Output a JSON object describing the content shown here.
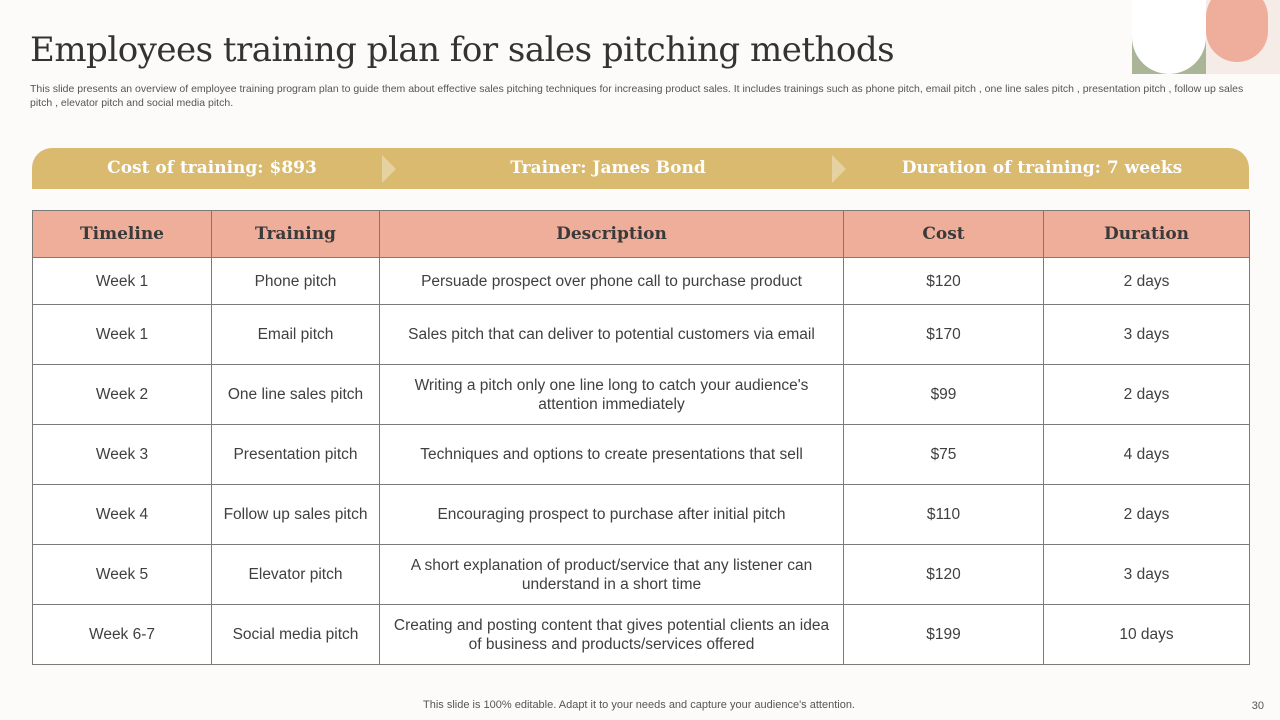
{
  "title": "Employees training plan for sales pitching methods",
  "subtitle": "This slide presents an overview of  employee training program plan to guide them about effective  sales pitching techniques for increasing product sales. It includes trainings such as phone pitch, email pitch , one line sales pitch , presentation pitch , follow up sales pitch , elevator pitch and social media pitch.",
  "banner": {
    "cost": "Cost of training: $893",
    "trainer": "Trainer: James Bond",
    "duration": "Duration of training: 7 weeks"
  },
  "table": {
    "headers": [
      "Timeline",
      "Training",
      "Description",
      "Cost",
      "Duration"
    ],
    "rows": [
      [
        "Week 1",
        "Phone pitch",
        "Persuade prospect over phone call to purchase product",
        "$120",
        "2 days"
      ],
      [
        "Week 1",
        "Email pitch",
        "Sales pitch that can deliver to potential customers via email",
        "$170",
        "3 days"
      ],
      [
        "Week 2",
        "One line sales pitch",
        "Writing a pitch only one line long to catch your audience's attention immediately",
        "$99",
        "2 days"
      ],
      [
        "Week 3",
        "Presentation pitch",
        "Techniques and options to create presentations that sell",
        "$75",
        "4 days"
      ],
      [
        "Week 4",
        "Follow up sales pitch",
        "Encouraging prospect to purchase after initial pitch",
        "$110",
        "2 days"
      ],
      [
        "Week 5",
        "Elevator pitch",
        "A short explanation of product/service that any listener can understand in a short time",
        "$120",
        "3 days"
      ],
      [
        "Week 6-7",
        "Social media pitch",
        "Creating and posting content that gives potential clients an idea of business and products/services offered",
        "$199",
        "10 days"
      ]
    ]
  },
  "footer": "This slide is 100% editable. Adapt it to your needs and capture your audience's attention.",
  "page_number": "30",
  "colors": {
    "banner": "#d9ba6f",
    "header": "#efae9a",
    "deco_green": "#aab497",
    "deco_salmon": "#efae9c"
  }
}
